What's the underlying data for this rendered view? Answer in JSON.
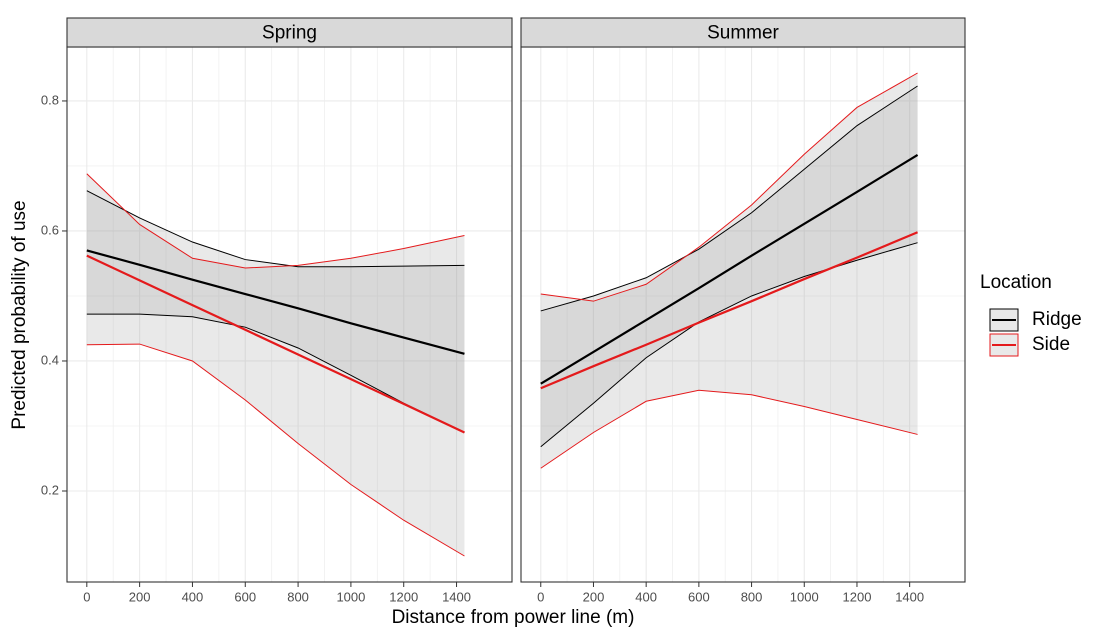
{
  "chart_data": {
    "type": "line",
    "xlabel": "Distance from power line (m)",
    "ylabel": "Predicted probability of use",
    "legend_title": "Location",
    "x": [
      0,
      200,
      400,
      600,
      800,
      1000,
      1200,
      1430
    ],
    "xlim": [
      -75,
      1610
    ],
    "ylim": [
      0.06,
      0.883
    ],
    "xticks": [
      0,
      200,
      400,
      600,
      800,
      1000,
      1200,
      1400
    ],
    "yticks": [
      0.2,
      0.4,
      0.6,
      0.8
    ],
    "grid": true,
    "series": [
      {
        "name": "Ridge",
        "color": "#000000"
      },
      {
        "name": "Side",
        "color": "#e41a1c"
      }
    ],
    "facets": [
      {
        "title": "Spring",
        "series": [
          {
            "values": [
              0.57,
              0.548,
              0.525,
              0.503,
              0.481,
              0.458,
              0.436,
              0.411
            ],
            "lower": [
              0.472,
              0.472,
              0.468,
              0.452,
              0.42,
              0.378,
              0.335,
              0.29
            ],
            "upper": [
              0.662,
              0.62,
              0.583,
              0.556,
              0.545,
              0.545,
              0.546,
              0.547
            ]
          },
          {
            "values": [
              0.562,
              0.524,
              0.486,
              0.448,
              0.41,
              0.372,
              0.334,
              0.29
            ],
            "lower": [
              0.425,
              0.426,
              0.4,
              0.34,
              0.273,
              0.21,
              0.155,
              0.1
            ],
            "upper": [
              0.688,
              0.61,
              0.558,
              0.543,
              0.547,
              0.558,
              0.573,
              0.593
            ]
          }
        ]
      },
      {
        "title": "Summer",
        "series": [
          {
            "values": [
              0.365,
              0.414,
              0.463,
              0.512,
              0.562,
              0.611,
              0.66,
              0.717
            ],
            "lower": [
              0.268,
              0.335,
              0.405,
              0.46,
              0.5,
              0.53,
              0.555,
              0.582
            ],
            "upper": [
              0.477,
              0.5,
              0.528,
              0.572,
              0.628,
              0.695,
              0.762,
              0.823
            ]
          },
          {
            "values": [
              0.358,
              0.392,
              0.425,
              0.459,
              0.492,
              0.526,
              0.559,
              0.598
            ],
            "lower": [
              0.235,
              0.29,
              0.338,
              0.355,
              0.348,
              0.33,
              0.31,
              0.287
            ],
            "upper": [
              0.503,
              0.492,
              0.518,
              0.575,
              0.64,
              0.718,
              0.79,
              0.843
            ]
          }
        ]
      }
    ]
  }
}
